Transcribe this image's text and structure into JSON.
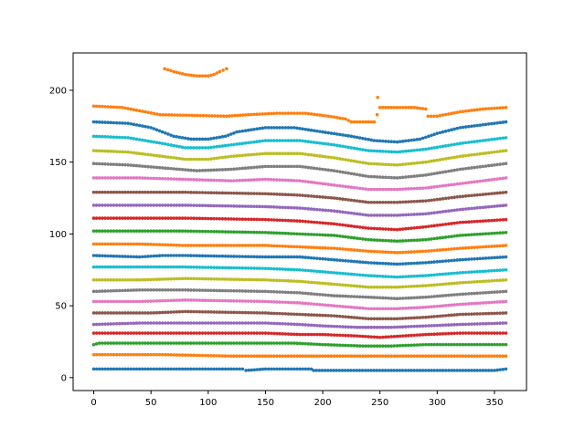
{
  "chart_data": {
    "type": "scatter",
    "title": "",
    "xlabel": "",
    "ylabel": "",
    "xlim": [
      -18,
      378
    ],
    "ylim": [
      -9,
      226
    ],
    "xticks": [
      0,
      50,
      100,
      150,
      200,
      250,
      300,
      350
    ],
    "yticks": [
      0,
      50,
      100,
      150,
      200
    ],
    "xtick_labels": [
      "0",
      "50",
      "100",
      "150",
      "200",
      "250",
      "300",
      "350"
    ],
    "ytick_labels": [
      "0",
      "50",
      "100",
      "150",
      "200"
    ],
    "grid": false,
    "marker": "small dots",
    "series": [
      {
        "color": "#1f77b4",
        "points": [
          [
            0,
            6
          ],
          [
            60,
            6
          ],
          [
            130,
            6
          ],
          [
            133,
            5
          ],
          [
            150,
            6
          ],
          [
            190,
            6
          ],
          [
            192,
            5
          ],
          [
            300,
            5
          ],
          [
            350,
            5
          ],
          [
            360,
            6
          ]
        ]
      },
      {
        "color": "#ff7f0e",
        "points": [
          [
            0,
            16
          ],
          [
            60,
            16
          ],
          [
            120,
            15
          ],
          [
            180,
            15
          ],
          [
            250,
            15
          ],
          [
            300,
            15
          ],
          [
            360,
            15
          ]
        ]
      },
      {
        "color": "#2ca02c",
        "points": [
          [
            0,
            23
          ],
          [
            5,
            24
          ],
          [
            80,
            24
          ],
          [
            150,
            24
          ],
          [
            175,
            24
          ],
          [
            200,
            23
          ],
          [
            235,
            22
          ],
          [
            260,
            22
          ],
          [
            290,
            23
          ],
          [
            330,
            23
          ],
          [
            360,
            23
          ]
        ]
      },
      {
        "color": "#d62728",
        "points": [
          [
            0,
            31
          ],
          [
            80,
            31
          ],
          [
            150,
            31
          ],
          [
            180,
            30
          ],
          [
            200,
            30
          ],
          [
            230,
            29
          ],
          [
            250,
            28
          ],
          [
            270,
            29
          ],
          [
            290,
            30
          ],
          [
            320,
            31
          ],
          [
            360,
            31
          ]
        ]
      },
      {
        "color": "#9467bd",
        "points": [
          [
            0,
            37
          ],
          [
            40,
            38
          ],
          [
            80,
            38
          ],
          [
            150,
            38
          ],
          [
            180,
            37
          ],
          [
            200,
            36
          ],
          [
            230,
            35
          ],
          [
            260,
            35
          ],
          [
            290,
            36
          ],
          [
            320,
            37
          ],
          [
            360,
            38
          ]
        ]
      },
      {
        "color": "#8c564b",
        "points": [
          [
            0,
            45
          ],
          [
            50,
            45
          ],
          [
            80,
            46
          ],
          [
            150,
            45
          ],
          [
            180,
            44
          ],
          [
            210,
            43
          ],
          [
            240,
            41
          ],
          [
            265,
            41
          ],
          [
            290,
            42
          ],
          [
            320,
            44
          ],
          [
            360,
            45
          ]
        ]
      },
      {
        "color": "#e377c2",
        "points": [
          [
            0,
            53
          ],
          [
            40,
            53
          ],
          [
            80,
            54
          ],
          [
            150,
            53
          ],
          [
            180,
            52
          ],
          [
            210,
            50
          ],
          [
            240,
            48
          ],
          [
            265,
            48
          ],
          [
            290,
            49
          ],
          [
            320,
            51
          ],
          [
            360,
            53
          ]
        ]
      },
      {
        "color": "#7f7f7f",
        "points": [
          [
            0,
            60
          ],
          [
            40,
            61
          ],
          [
            80,
            61
          ],
          [
            150,
            60
          ],
          [
            180,
            59
          ],
          [
            210,
            57
          ],
          [
            240,
            56
          ],
          [
            265,
            55
          ],
          [
            290,
            56
          ],
          [
            320,
            58
          ],
          [
            360,
            60
          ]
        ]
      },
      {
        "color": "#bcbd22",
        "points": [
          [
            0,
            68
          ],
          [
            40,
            68
          ],
          [
            80,
            69
          ],
          [
            150,
            68
          ],
          [
            180,
            67
          ],
          [
            210,
            65
          ],
          [
            240,
            63
          ],
          [
            265,
            63
          ],
          [
            290,
            64
          ],
          [
            320,
            66
          ],
          [
            360,
            68
          ]
        ]
      },
      {
        "color": "#17becf",
        "points": [
          [
            0,
            77
          ],
          [
            40,
            77
          ],
          [
            80,
            77
          ],
          [
            150,
            76
          ],
          [
            180,
            75
          ],
          [
            210,
            73
          ],
          [
            240,
            71
          ],
          [
            265,
            70
          ],
          [
            290,
            71
          ],
          [
            320,
            73
          ],
          [
            360,
            75
          ]
        ]
      },
      {
        "color": "#1f77b4",
        "points": [
          [
            0,
            85
          ],
          [
            40,
            84
          ],
          [
            60,
            85
          ],
          [
            80,
            85
          ],
          [
            150,
            84
          ],
          [
            180,
            84
          ],
          [
            210,
            82
          ],
          [
            240,
            80
          ],
          [
            265,
            79
          ],
          [
            290,
            80
          ],
          [
            320,
            82
          ],
          [
            360,
            84
          ]
        ]
      },
      {
        "color": "#ff7f0e",
        "points": [
          [
            0,
            93
          ],
          [
            40,
            93
          ],
          [
            80,
            92
          ],
          [
            150,
            92
          ],
          [
            180,
            91
          ],
          [
            210,
            90
          ],
          [
            240,
            88
          ],
          [
            265,
            87
          ],
          [
            290,
            88
          ],
          [
            320,
            90
          ],
          [
            360,
            92
          ]
        ]
      },
      {
        "color": "#2ca02c",
        "points": [
          [
            0,
            102
          ],
          [
            40,
            102
          ],
          [
            80,
            102
          ],
          [
            150,
            101
          ],
          [
            180,
            100
          ],
          [
            210,
            99
          ],
          [
            240,
            96
          ],
          [
            265,
            95
          ],
          [
            290,
            96
          ],
          [
            320,
            99
          ],
          [
            360,
            101
          ]
        ]
      },
      {
        "color": "#d62728",
        "points": [
          [
            0,
            111
          ],
          [
            40,
            111
          ],
          [
            80,
            111
          ],
          [
            150,
            110
          ],
          [
            180,
            109
          ],
          [
            210,
            107
          ],
          [
            240,
            104
          ],
          [
            265,
            103
          ],
          [
            290,
            105
          ],
          [
            320,
            108
          ],
          [
            360,
            110
          ]
        ]
      },
      {
        "color": "#9467bd",
        "points": [
          [
            0,
            120
          ],
          [
            40,
            120
          ],
          [
            80,
            120
          ],
          [
            150,
            119
          ],
          [
            180,
            118
          ],
          [
            210,
            116
          ],
          [
            240,
            113
          ],
          [
            265,
            113
          ],
          [
            290,
            114
          ],
          [
            320,
            117
          ],
          [
            360,
            120
          ]
        ]
      },
      {
        "color": "#8c564b",
        "points": [
          [
            0,
            129
          ],
          [
            40,
            129
          ],
          [
            80,
            129
          ],
          [
            150,
            128
          ],
          [
            180,
            127
          ],
          [
            210,
            125
          ],
          [
            240,
            122
          ],
          [
            265,
            122
          ],
          [
            290,
            123
          ],
          [
            320,
            126
          ],
          [
            360,
            129
          ]
        ]
      },
      {
        "color": "#e377c2",
        "points": [
          [
            0,
            139
          ],
          [
            40,
            139
          ],
          [
            80,
            138
          ],
          [
            120,
            137
          ],
          [
            150,
            138
          ],
          [
            180,
            137
          ],
          [
            210,
            134
          ],
          [
            240,
            131
          ],
          [
            265,
            131
          ],
          [
            290,
            132
          ],
          [
            320,
            135
          ],
          [
            360,
            139
          ]
        ]
      },
      {
        "color": "#7f7f7f",
        "points": [
          [
            0,
            149
          ],
          [
            30,
            148
          ],
          [
            60,
            146
          ],
          [
            90,
            144
          ],
          [
            120,
            145
          ],
          [
            150,
            147
          ],
          [
            180,
            147
          ],
          [
            210,
            144
          ],
          [
            240,
            140
          ],
          [
            265,
            139
          ],
          [
            290,
            141
          ],
          [
            320,
            145
          ],
          [
            360,
            149
          ]
        ]
      },
      {
        "color": "#bcbd22",
        "points": [
          [
            0,
            158
          ],
          [
            30,
            157
          ],
          [
            60,
            154
          ],
          [
            80,
            152
          ],
          [
            100,
            152
          ],
          [
            120,
            154
          ],
          [
            150,
            156
          ],
          [
            180,
            156
          ],
          [
            210,
            153
          ],
          [
            240,
            149
          ],
          [
            265,
            148
          ],
          [
            290,
            150
          ],
          [
            320,
            154
          ],
          [
            360,
            158
          ]
        ]
      },
      {
        "color": "#17becf",
        "points": [
          [
            0,
            168
          ],
          [
            30,
            167
          ],
          [
            60,
            163
          ],
          [
            80,
            160
          ],
          [
            100,
            160
          ],
          [
            120,
            162
          ],
          [
            150,
            165
          ],
          [
            180,
            165
          ],
          [
            210,
            162
          ],
          [
            240,
            158
          ],
          [
            265,
            157
          ],
          [
            290,
            159
          ],
          [
            320,
            163
          ],
          [
            360,
            167
          ]
        ]
      },
      {
        "color": "#1f77b4",
        "points": [
          [
            0,
            178
          ],
          [
            30,
            177
          ],
          [
            50,
            174
          ],
          [
            70,
            168
          ],
          [
            85,
            166
          ],
          [
            100,
            166
          ],
          [
            115,
            168
          ],
          [
            125,
            171
          ],
          [
            150,
            174
          ],
          [
            175,
            174
          ],
          [
            200,
            171
          ],
          [
            225,
            168
          ],
          [
            245,
            165
          ],
          [
            265,
            164
          ],
          [
            285,
            166
          ],
          [
            300,
            170
          ],
          [
            320,
            174
          ],
          [
            340,
            176
          ],
          [
            360,
            178
          ]
        ]
      },
      {
        "color": "#ff7f0e",
        "points": [
          [
            0,
            189
          ],
          [
            25,
            188
          ],
          [
            45,
            185
          ],
          [
            58,
            183
          ],
          [
            116,
            182
          ],
          [
            135,
            183
          ],
          [
            160,
            184
          ],
          [
            185,
            184
          ],
          [
            205,
            182
          ],
          [
            220,
            180
          ],
          [
            225,
            178
          ],
          [
            245,
            178
          ],
          [
            250,
            188
          ],
          [
            280,
            188
          ],
          [
            290,
            187
          ],
          [
            292,
            182
          ],
          [
            300,
            182
          ],
          [
            320,
            185
          ],
          [
            340,
            187
          ],
          [
            360,
            188
          ]
        ]
      },
      {
        "color": "#ff7f0e",
        "points": [
          [
            62,
            215
          ],
          [
            70,
            213
          ],
          [
            80,
            211
          ],
          [
            90,
            210
          ],
          [
            100,
            210
          ],
          [
            105,
            211
          ],
          [
            110,
            213
          ],
          [
            116,
            215
          ]
        ]
      },
      {
        "color": "#ff7f0e",
        "points": [
          [
            248,
            195
          ]
        ]
      }
    ]
  }
}
